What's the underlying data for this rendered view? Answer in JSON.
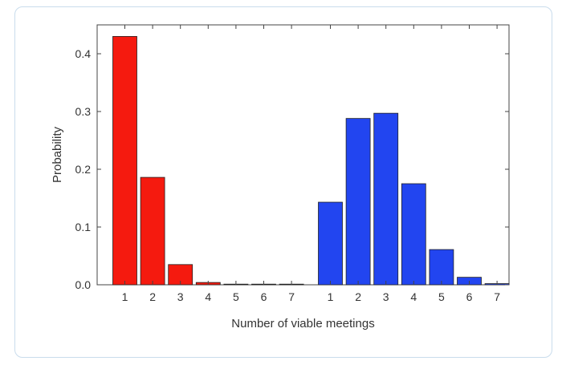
{
  "chart_data": {
    "type": "bar",
    "xlabel": "Number of viable meetings",
    "ylabel": "Probability",
    "ylim": [
      0,
      0.45
    ],
    "yticks": [
      "0.0",
      "0.1",
      "0.2",
      "0.3",
      "0.4"
    ],
    "grid": false,
    "legend": "none",
    "categories": [
      "1",
      "2",
      "3",
      "4",
      "5",
      "6",
      "7"
    ],
    "series": [
      {
        "color": "#f51a0f",
        "values": [
          0.43,
          0.186,
          0.035,
          0.004,
          0.001,
          0.0005,
          0.0003
        ]
      },
      {
        "color": "#2245f0",
        "values": [
          0.143,
          0.288,
          0.297,
          0.175,
          0.061,
          0.013,
          0.002
        ]
      }
    ]
  }
}
